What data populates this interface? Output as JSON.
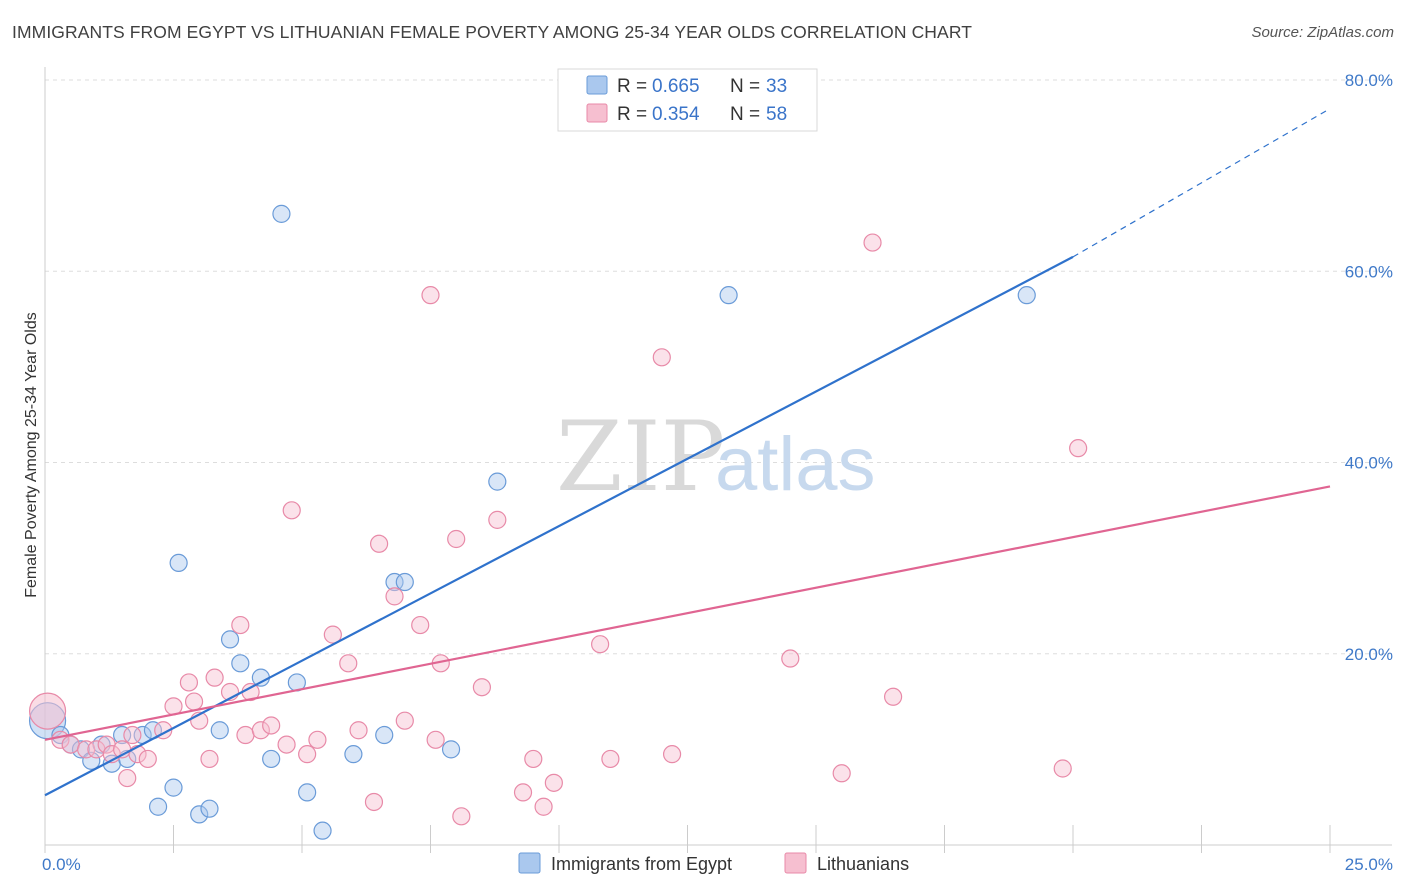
{
  "title": "IMMIGRANTS FROM EGYPT VS LITHUANIAN FEMALE POVERTY AMONG 25-34 YEAR OLDS CORRELATION CHART",
  "source": "Source: ZipAtlas.com",
  "watermark": {
    "zip": "ZIP",
    "atlas": "atlas"
  },
  "colors": {
    "blue_fill": "#aac8ee",
    "blue_stroke": "#6a9bd8",
    "blue_line": "#2f72cc",
    "pink_fill": "#f6bfd0",
    "pink_stroke": "#e88aa8",
    "pink_line": "#e06592",
    "grid": "#dddddd",
    "tick_text": "#3f79c8"
  },
  "legend": {
    "rows": [
      {
        "r_label": "R =",
        "r_value": "0.665",
        "n_label": "N =",
        "n_value": "33"
      },
      {
        "r_label": "R =",
        "r_value": "0.354",
        "n_label": "N =",
        "n_value": "58"
      }
    ]
  },
  "chart_data": {
    "type": "scatter",
    "title": "IMMIGRANTS FROM EGYPT VS LITHUANIAN FEMALE POVERTY AMONG 25-34 YEAR OLDS CORRELATION CHART",
    "xlabel": "",
    "ylabel": "Female Poverty Among 25-34 Year Olds",
    "xlim": [
      0,
      25
    ],
    "ylim": [
      0,
      80
    ],
    "x_ticks": [
      {
        "value": 0,
        "label": "0.0%"
      },
      {
        "value": 25,
        "label": "25.0%"
      }
    ],
    "y_ticks": [
      {
        "value": 20,
        "label": "20.0%"
      },
      {
        "value": 40,
        "label": "40.0%"
      },
      {
        "value": 60,
        "label": "60.0%"
      },
      {
        "value": 80,
        "label": "80.0%"
      }
    ],
    "grid": true,
    "series": [
      {
        "name": "Immigrants from Egypt",
        "color": "blue",
        "trend": {
          "x0": 0,
          "y0": 5.2,
          "x1": 20,
          "y1": 61.5,
          "dash_to_x": 25,
          "dash_to_y": 77.0
        },
        "points": [
          {
            "x": 0.05,
            "y": 13.0,
            "big": true
          },
          {
            "x": 0.3,
            "y": 11.5
          },
          {
            "x": 0.5,
            "y": 10.5
          },
          {
            "x": 0.7,
            "y": 10.0
          },
          {
            "x": 0.9,
            "y": 8.8
          },
          {
            "x": 1.1,
            "y": 10.5
          },
          {
            "x": 1.3,
            "y": 8.5
          },
          {
            "x": 1.5,
            "y": 11.5
          },
          {
            "x": 1.6,
            "y": 9.0
          },
          {
            "x": 1.9,
            "y": 11.5
          },
          {
            "x": 2.1,
            "y": 12.0
          },
          {
            "x": 2.2,
            "y": 4.0
          },
          {
            "x": 2.5,
            "y": 6.0
          },
          {
            "x": 2.6,
            "y": 29.5
          },
          {
            "x": 3.0,
            "y": 3.2
          },
          {
            "x": 3.2,
            "y": 3.8
          },
          {
            "x": 3.4,
            "y": 12.0
          },
          {
            "x": 3.6,
            "y": 21.5
          },
          {
            "x": 3.8,
            "y": 19.0
          },
          {
            "x": 4.2,
            "y": 17.5
          },
          {
            "x": 4.4,
            "y": 9.0
          },
          {
            "x": 4.6,
            "y": 66.0
          },
          {
            "x": 4.9,
            "y": 17.0
          },
          {
            "x": 5.1,
            "y": 5.5
          },
          {
            "x": 5.4,
            "y": 1.5
          },
          {
            "x": 6.0,
            "y": 9.5
          },
          {
            "x": 6.6,
            "y": 11.5
          },
          {
            "x": 6.8,
            "y": 27.5
          },
          {
            "x": 7.0,
            "y": 27.5
          },
          {
            "x": 7.9,
            "y": 10.0
          },
          {
            "x": 8.8,
            "y": 38.0
          },
          {
            "x": 13.3,
            "y": 57.5
          },
          {
            "x": 19.1,
            "y": 57.5
          }
        ]
      },
      {
        "name": "Lithuanians",
        "color": "pink",
        "trend": {
          "x0": 0,
          "y0": 11.0,
          "x1": 25,
          "y1": 37.5
        },
        "points": [
          {
            "x": 0.05,
            "y": 14.0,
            "big": true
          },
          {
            "x": 0.3,
            "y": 11.0
          },
          {
            "x": 0.5,
            "y": 10.5
          },
          {
            "x": 0.8,
            "y": 10.0
          },
          {
            "x": 1.0,
            "y": 10.0
          },
          {
            "x": 1.2,
            "y": 10.5
          },
          {
            "x": 1.3,
            "y": 9.5
          },
          {
            "x": 1.5,
            "y": 10.0
          },
          {
            "x": 1.7,
            "y": 11.5
          },
          {
            "x": 1.8,
            "y": 9.5
          },
          {
            "x": 2.0,
            "y": 9.0
          },
          {
            "x": 2.3,
            "y": 12.0
          },
          {
            "x": 2.5,
            "y": 14.5
          },
          {
            "x": 2.8,
            "y": 17.0
          },
          {
            "x": 3.0,
            "y": 13.0
          },
          {
            "x": 3.2,
            "y": 9.0
          },
          {
            "x": 3.3,
            "y": 17.5
          },
          {
            "x": 3.6,
            "y": 16.0
          },
          {
            "x": 3.8,
            "y": 23.0
          },
          {
            "x": 3.9,
            "y": 11.5
          },
          {
            "x": 4.0,
            "y": 16.0
          },
          {
            "x": 4.2,
            "y": 12.0
          },
          {
            "x": 4.4,
            "y": 12.5
          },
          {
            "x": 4.7,
            "y": 10.5
          },
          {
            "x": 4.8,
            "y": 35.0
          },
          {
            "x": 5.1,
            "y": 9.5
          },
          {
            "x": 5.3,
            "y": 11.0
          },
          {
            "x": 5.6,
            "y": 22.0
          },
          {
            "x": 5.9,
            "y": 19.0
          },
          {
            "x": 6.1,
            "y": 12.0
          },
          {
            "x": 6.4,
            "y": 4.5
          },
          {
            "x": 6.5,
            "y": 31.5
          },
          {
            "x": 6.8,
            "y": 26.0
          },
          {
            "x": 7.0,
            "y": 13.0
          },
          {
            "x": 7.3,
            "y": 23.0
          },
          {
            "x": 7.5,
            "y": 57.5
          },
          {
            "x": 7.6,
            "y": 11.0
          },
          {
            "x": 7.7,
            "y": 19.0
          },
          {
            "x": 8.0,
            "y": 32.0
          },
          {
            "x": 8.1,
            "y": 3.0
          },
          {
            "x": 8.5,
            "y": 16.5
          },
          {
            "x": 8.8,
            "y": 34.0
          },
          {
            "x": 9.3,
            "y": 5.5
          },
          {
            "x": 9.5,
            "y": 9.0
          },
          {
            "x": 9.7,
            "y": 4.0
          },
          {
            "x": 9.9,
            "y": 6.5
          },
          {
            "x": 10.8,
            "y": 21.0
          },
          {
            "x": 11.0,
            "y": 9.0
          },
          {
            "x": 12.0,
            "y": 51.0
          },
          {
            "x": 12.2,
            "y": 9.5
          },
          {
            "x": 14.5,
            "y": 19.5
          },
          {
            "x": 15.5,
            "y": 7.5
          },
          {
            "x": 16.1,
            "y": 63.0
          },
          {
            "x": 16.5,
            "y": 15.5
          },
          {
            "x": 19.8,
            "y": 8.0
          },
          {
            "x": 20.1,
            "y": 41.5
          },
          {
            "x": 1.6,
            "y": 7.0
          },
          {
            "x": 2.9,
            "y": 15.0
          }
        ]
      }
    ]
  }
}
